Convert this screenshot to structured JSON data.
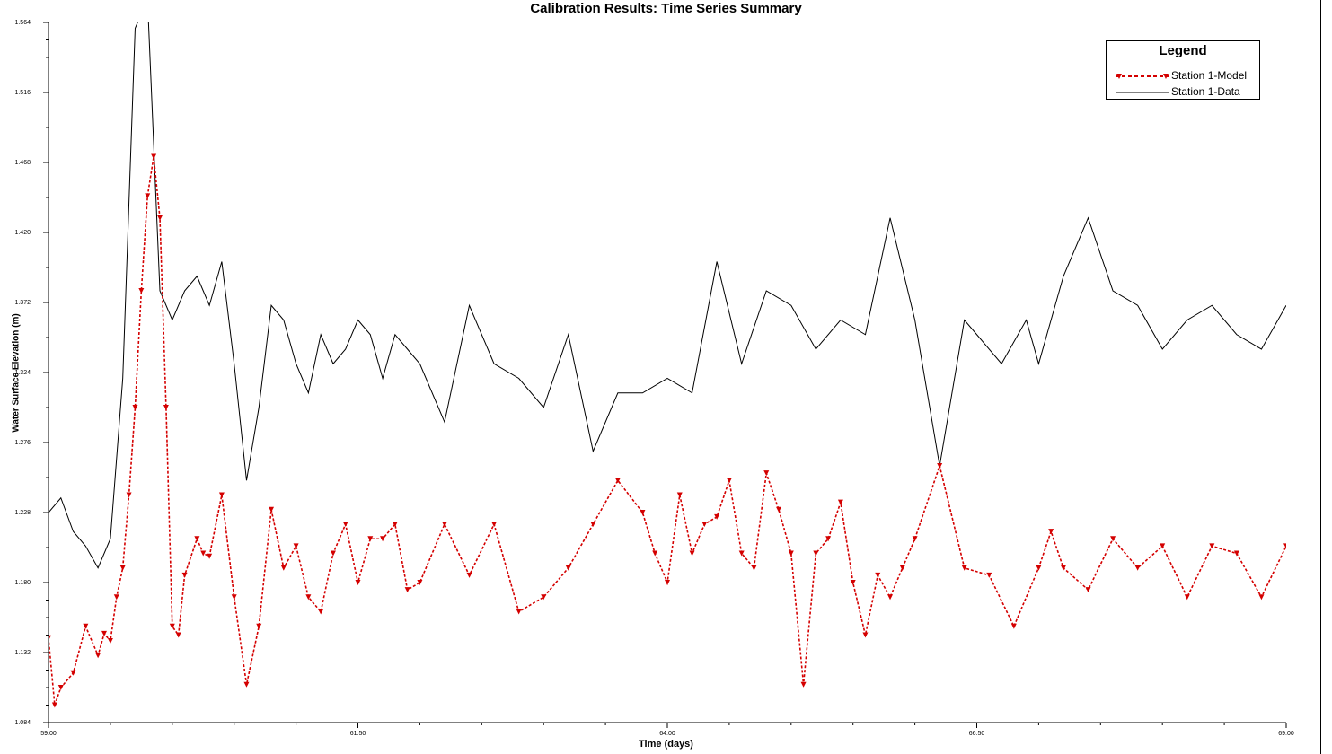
{
  "chart_data": {
    "type": "line",
    "title": "Calibration Results: Time Series Summary",
    "xlabel": "Time (days)",
    "ylabel": "Water Surface Elevation (m)",
    "xlim": [
      59.0,
      69.0
    ],
    "ylim": [
      1.084,
      1.564
    ],
    "xticks": [
      "59.00",
      "61.50",
      "64.00",
      "66.50",
      "69.00"
    ],
    "yticks": [
      "1.084",
      "1.132",
      "1.180",
      "1.228",
      "1.276",
      "1.324",
      "1.372",
      "1.420",
      "1.468",
      "1.516",
      "1.564"
    ],
    "legend": {
      "title": "Legend",
      "placement": "top-right"
    },
    "series": [
      {
        "name": "Station 1-Model",
        "color": "#d40000",
        "style": "dashed-triangle-markers",
        "x": [
          59.0,
          59.05,
          59.1,
          59.2,
          59.3,
          59.4,
          59.45,
          59.5,
          59.55,
          59.6,
          59.65,
          59.7,
          59.75,
          59.8,
          59.85,
          59.9,
          59.95,
          60.0,
          60.05,
          60.1,
          60.2,
          60.25,
          60.3,
          60.4,
          60.5,
          60.6,
          60.7,
          60.8,
          60.9,
          61.0,
          61.1,
          61.2,
          61.3,
          61.4,
          61.5,
          61.6,
          61.7,
          61.8,
          61.9,
          62.0,
          62.2,
          62.4,
          62.6,
          62.8,
          63.0,
          63.2,
          63.4,
          63.6,
          63.8,
          63.9,
          64.0,
          64.1,
          64.2,
          64.3,
          64.4,
          64.5,
          64.6,
          64.7,
          64.8,
          64.9,
          65.0,
          65.1,
          65.2,
          65.3,
          65.4,
          65.5,
          65.6,
          65.7,
          65.8,
          65.9,
          66.0,
          66.2,
          66.4,
          66.6,
          66.8,
          67.0,
          67.1,
          67.2,
          67.4,
          67.6,
          67.8,
          68.0,
          68.2,
          68.4,
          68.6,
          68.8,
          69.0
        ],
        "y": [
          1.142,
          1.096,
          1.108,
          1.118,
          1.15,
          1.13,
          1.145,
          1.14,
          1.17,
          1.19,
          1.24,
          1.3,
          1.38,
          1.445,
          1.472,
          1.43,
          1.3,
          1.15,
          1.144,
          1.185,
          1.21,
          1.2,
          1.198,
          1.24,
          1.17,
          1.11,
          1.15,
          1.23,
          1.19,
          1.205,
          1.17,
          1.16,
          1.2,
          1.22,
          1.18,
          1.21,
          1.21,
          1.22,
          1.175,
          1.18,
          1.22,
          1.185,
          1.22,
          1.16,
          1.17,
          1.19,
          1.22,
          1.25,
          1.228,
          1.2,
          1.18,
          1.24,
          1.2,
          1.22,
          1.225,
          1.25,
          1.2,
          1.19,
          1.255,
          1.23,
          1.2,
          1.11,
          1.2,
          1.21,
          1.235,
          1.18,
          1.144,
          1.185,
          1.17,
          1.19,
          1.21,
          1.26,
          1.19,
          1.185,
          1.15,
          1.19,
          1.215,
          1.19,
          1.175,
          1.21,
          1.19,
          1.205,
          1.17,
          1.205,
          1.2,
          1.17,
          1.205
        ]
      },
      {
        "name": "Station 1-Data",
        "color": "#000000",
        "style": "solid",
        "x": [
          59.0,
          59.1,
          59.2,
          59.3,
          59.4,
          59.5,
          59.6,
          59.7,
          59.8,
          59.9,
          60.0,
          60.1,
          60.2,
          60.3,
          60.4,
          60.5,
          60.6,
          60.7,
          60.8,
          60.9,
          61.0,
          61.1,
          61.2,
          61.3,
          61.4,
          61.5,
          61.6,
          61.7,
          61.8,
          61.9,
          62.0,
          62.2,
          62.4,
          62.6,
          62.8,
          63.0,
          63.2,
          63.4,
          63.6,
          63.8,
          64.0,
          64.2,
          64.4,
          64.6,
          64.8,
          65.0,
          65.2,
          65.4,
          65.6,
          65.8,
          66.0,
          66.2,
          66.4,
          66.5,
          66.7,
          66.9,
          67.0,
          67.2,
          67.4,
          67.6,
          67.8,
          68.0,
          68.2,
          68.4,
          68.6,
          68.8,
          69.0
        ],
        "y": [
          1.228,
          1.238,
          1.215,
          1.205,
          1.19,
          1.21,
          1.32,
          1.56,
          1.58,
          1.38,
          1.36,
          1.38,
          1.39,
          1.37,
          1.4,
          1.33,
          1.25,
          1.3,
          1.37,
          1.36,
          1.33,
          1.31,
          1.35,
          1.33,
          1.34,
          1.36,
          1.35,
          1.32,
          1.35,
          1.34,
          1.33,
          1.29,
          1.37,
          1.33,
          1.32,
          1.3,
          1.35,
          1.27,
          1.31,
          1.31,
          1.32,
          1.31,
          1.4,
          1.33,
          1.38,
          1.37,
          1.34,
          1.36,
          1.35,
          1.43,
          1.36,
          1.26,
          1.36,
          1.35,
          1.33,
          1.36,
          1.33,
          1.39,
          1.43,
          1.38,
          1.37,
          1.34,
          1.36,
          1.37,
          1.35,
          1.34,
          1.37
        ]
      }
    ]
  }
}
